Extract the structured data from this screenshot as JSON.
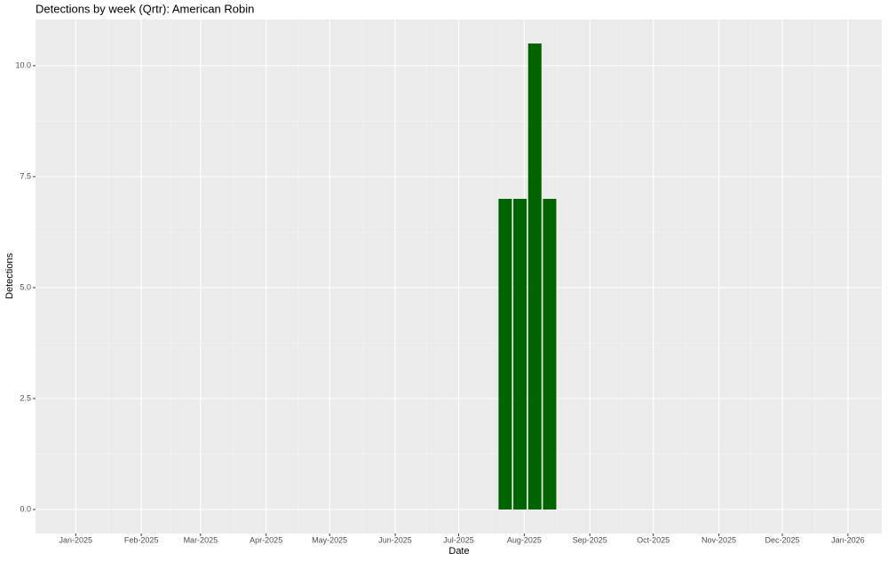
{
  "chart_data": {
    "type": "bar",
    "title": "Detections by week (Qrtr): American Robin",
    "x_label": "Date",
    "y_label": "Detections",
    "x": [
      "2025-07-23",
      "2025-07-30",
      "2025-08-06",
      "2025-08-13"
    ],
    "values": [
      7,
      7,
      10.5,
      7
    ],
    "color": "#006400",
    "xlim": [
      "2024-12-13",
      "2026-01-17"
    ],
    "xticks": [
      {
        "value": "2025-01",
        "label": "Jan-2025"
      },
      {
        "value": "2025-02",
        "label": "Feb-2025"
      },
      {
        "value": "2025-03",
        "label": "Mar-2025"
      },
      {
        "value": "2025-04",
        "label": "Apr-2025"
      },
      {
        "value": "2025-05",
        "label": "May-2025"
      },
      {
        "value": "2025-06",
        "label": "Jun-2025"
      },
      {
        "value": "2025-07",
        "label": "Jul-2025"
      },
      {
        "value": "2025-08",
        "label": "Aug-2025"
      },
      {
        "value": "2025-09",
        "label": "Sep-2025"
      },
      {
        "value": "2025-10",
        "label": "Oct-2025"
      },
      {
        "value": "2025-11",
        "label": "Nov-2025"
      },
      {
        "value": "2025-12",
        "label": "Dec-2025"
      },
      {
        "value": "2026-01",
        "label": "Jan-2026"
      }
    ],
    "ylim": [
      -0.54,
      11.04
    ],
    "yticks": [
      {
        "value": 0,
        "label": "0.0"
      },
      {
        "value": 2.5,
        "label": "2.5"
      },
      {
        "value": 5,
        "label": "5.0"
      },
      {
        "value": 7.5,
        "label": "7.5"
      },
      {
        "value": 10,
        "label": "10.0"
      }
    ],
    "grid": true
  }
}
